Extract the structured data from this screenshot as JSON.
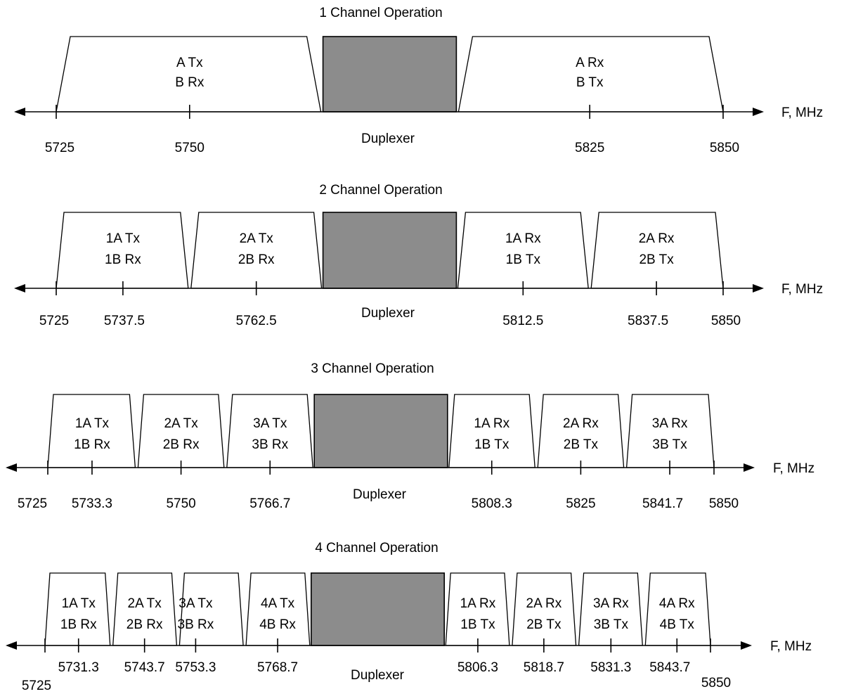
{
  "panels": [
    {
      "title": "1 Channel Operation",
      "tx_bands": [
        {
          "center": 5750,
          "lines": [
            "A Tx",
            "B Rx"
          ]
        }
      ],
      "duplexer": {
        "start": 5775,
        "end": 5800,
        "label": "Duplexer"
      },
      "rx_bands": [
        {
          "center": 5825,
          "lines": [
            "A Rx",
            "B Tx"
          ]
        }
      ],
      "ticks": [
        5725,
        5750,
        5825,
        5850
      ],
      "tick_labels": [
        "5725",
        "5750",
        "5825",
        "5850"
      ],
      "axis_label": "F, MHz"
    },
    {
      "title": "2 Channel Operation",
      "tx_bands": [
        {
          "center": 5737.5,
          "lines": [
            "1A Tx",
            "1B Rx"
          ]
        },
        {
          "center": 5762.5,
          "lines": [
            "2A Tx",
            "2B Rx"
          ]
        }
      ],
      "duplexer": {
        "start": 5775,
        "end": 5800,
        "label": "Duplexer"
      },
      "rx_bands": [
        {
          "center": 5812.5,
          "lines": [
            "1A Rx",
            "1B Tx"
          ]
        },
        {
          "center": 5837.5,
          "lines": [
            "2A Rx",
            "2B Tx"
          ]
        }
      ],
      "ticks": [
        5725,
        5737.5,
        5762.5,
        5812.5,
        5837.5,
        5850
      ],
      "tick_labels": [
        "5725",
        "5737.5",
        "5762.5",
        "5812.5",
        "5837.5",
        "5850"
      ],
      "axis_label": "F, MHz"
    },
    {
      "title": "3 Channel Operation",
      "tx_bands": [
        {
          "center": 5733.3,
          "lines": [
            "1A Tx",
            "1B Rx"
          ]
        },
        {
          "center": 5750,
          "lines": [
            "2A Tx",
            "2B Rx"
          ]
        },
        {
          "center": 5766.7,
          "lines": [
            "3A Tx",
            "3B Rx"
          ]
        }
      ],
      "duplexer": {
        "start": 5775,
        "end": 5800,
        "label": "Duplexer"
      },
      "rx_bands": [
        {
          "center": 5808.3,
          "lines": [
            "1A Rx",
            "1B Tx"
          ]
        },
        {
          "center": 5825,
          "lines": [
            "2A Rx",
            "2B Tx"
          ]
        },
        {
          "center": 5841.7,
          "lines": [
            "3A Rx",
            "3B Tx"
          ]
        }
      ],
      "ticks": [
        5725,
        5733.3,
        5750,
        5766.7,
        5808.3,
        5825,
        5841.7,
        5850
      ],
      "tick_labels": [
        "5725",
        "5733.3",
        "5750",
        "5766.7",
        "5808.3",
        "5825",
        "5841.7",
        "5850"
      ],
      "axis_label": "F, MHz"
    },
    {
      "title": "4 Channel Operation",
      "tx_bands": [
        {
          "center": 5731.3,
          "lines": [
            "1A Tx",
            "1B Rx"
          ]
        },
        {
          "center": 5743.7,
          "lines": [
            "2A Tx",
            "2B Rx"
          ]
        },
        {
          "center": 5753.3,
          "lines": [
            "3A Tx",
            "3B Rx"
          ]
        },
        {
          "center": 5768.7,
          "lines": [
            "4A Tx",
            "4B Rx"
          ]
        }
      ],
      "duplexer": {
        "start": 5775,
        "end": 5800,
        "label": "Duplexer"
      },
      "rx_bands": [
        {
          "center": 5806.3,
          "lines": [
            "1A Rx",
            "1B Tx"
          ]
        },
        {
          "center": 5818.7,
          "lines": [
            "2A Rx",
            "2B Tx"
          ]
        },
        {
          "center": 5831.3,
          "lines": [
            "3A Rx",
            "3B Tx"
          ]
        },
        {
          "center": 5843.7,
          "lines": [
            "4A Rx",
            "4B Tx"
          ]
        }
      ],
      "ticks": [
        5725,
        5731.3,
        5743.7,
        5753.3,
        5768.7,
        5806.3,
        5818.7,
        5831.3,
        5843.7,
        5850
      ],
      "tick_labels": [
        "5725",
        "5731.3",
        "5743.7",
        "5753.3",
        "5768.7",
        "5806.3",
        "5818.7",
        "5831.3",
        "5843.7",
        "5850"
      ],
      "axis_label": "F, MHz"
    }
  ]
}
